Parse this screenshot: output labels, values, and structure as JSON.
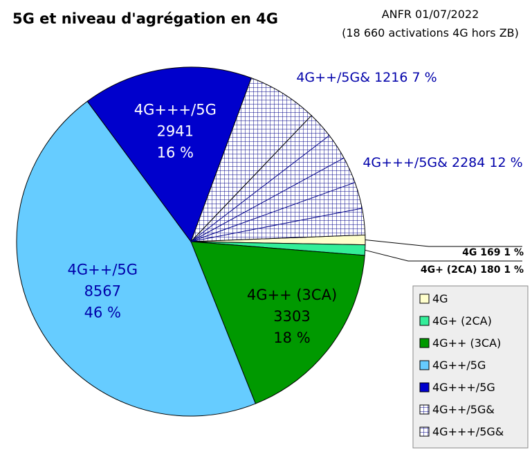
{
  "chart_data": {
    "type": "pie",
    "title": "5G et niveau d'agrégation en 4G",
    "source_line1": "ANFR 01/07/2022",
    "source_line2": "(18 660 activations 4G hors ZB)",
    "slices": [
      {
        "name": "4G",
        "value": 169,
        "percent": "1 %",
        "color": "#ffffcc",
        "pattern": "none",
        "label_lines": [
          "4G 169 1 %"
        ],
        "label_color": "#000000"
      },
      {
        "name": "4G+ (2CA)",
        "value": 180,
        "percent": "1 %",
        "color": "#33ee99",
        "pattern": "none",
        "label_lines": [
          "4G+ (2CA) 180 1 %"
        ],
        "label_color": "#000000"
      },
      {
        "name": "4G++ (3CA)",
        "value": 3303,
        "percent": "18 %",
        "color": "#009900",
        "pattern": "none",
        "label_lines": [
          "4G++ (3CA)",
          "3303",
          "18 %"
        ],
        "label_color": "#000000"
      },
      {
        "name": "4G++/5G",
        "value": 8567,
        "percent": "46 %",
        "color": "#66ccff",
        "pattern": "none",
        "label_lines": [
          "4G++/5G",
          "8567",
          "46 %"
        ],
        "label_color": "#0000aa"
      },
      {
        "name": "4G+++/5G",
        "value": 2941,
        "percent": "16 %",
        "color": "#0000cc",
        "pattern": "none",
        "label_lines": [
          "4G+++/5G",
          "2941",
          "16 %"
        ],
        "label_color": "#ffffff"
      },
      {
        "name": "4G++/5G&",
        "value": 1216,
        "percent": "7 %",
        "color": "#ffffff",
        "pattern": "grid",
        "label_lines": [
          "4G++/5G& 1216 7 %"
        ],
        "label_color": "#0000aa"
      },
      {
        "name": "4G+++/5G&",
        "value": 2284,
        "percent": "12 %",
        "color": "#ffffff",
        "pattern": "grid-diag",
        "label_lines": [
          "4G+++/5G& 2284 12 %"
        ],
        "label_color": "#0000aa"
      }
    ],
    "legend": {
      "placement": "bottom-right",
      "entries": [
        "4G",
        "4G+ (2CA)",
        "4G++ (3CA)",
        "4G++/5G",
        "4G+++/5G",
        "4G++/5G&",
        "4G+++/5G&"
      ]
    }
  }
}
